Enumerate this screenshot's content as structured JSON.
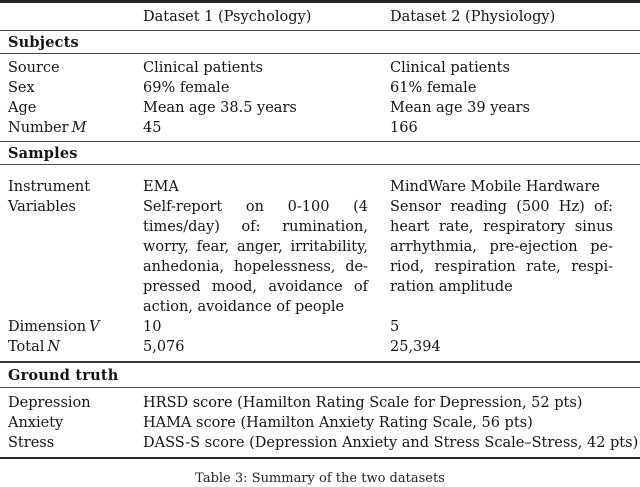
{
  "header": {
    "dataset1": "Dataset 1 (Psychology)",
    "dataset2": "Dataset 2 (Physiology)"
  },
  "subjects": {
    "title": "Subjects",
    "rows": [
      {
        "label": "Source",
        "c1": "Clinical patients",
        "c2": "Clinical patients"
      },
      {
        "label": "Sex",
        "c1": "69% female",
        "c2": "61% female"
      },
      {
        "label": "Age",
        "c1": "Mean age 38.5 years",
        "c2": "Mean age 39 years"
      },
      {
        "label": "Number",
        "math": "M",
        "c1": "45",
        "c2": "166"
      }
    ]
  },
  "samples": {
    "title": "Samples",
    "instrument": {
      "label": "Instrument",
      "c1": "EMA",
      "c2": "MindWare Mobile Hardware"
    },
    "variables": {
      "label": "Variables",
      "c1_lines": [
        "Self-report on 0-100 (4",
        "times/day) of: rumination,",
        "worry, fear, anger, irritability,",
        "anhedonia, hopelessness, de-",
        "pressed mood, avoidance of",
        "action, avoidance of people"
      ],
      "c2_lines": [
        "Sensor reading (500 Hz) of:",
        "heart rate, respiratory sinus",
        "arrhythmia, pre-ejection pe-",
        "riod, respiration rate, respi-",
        "ration amplitude"
      ]
    },
    "dimension": {
      "label": "Dimension",
      "math": "V",
      "c1": "10",
      "c2": "5"
    },
    "total": {
      "label": "Total",
      "math": "N",
      "c1": "5,076",
      "c2": "25,394"
    }
  },
  "ground_truth": {
    "title": "Ground truth",
    "rows": [
      {
        "label": "Depression",
        "value": "HRSD score (Hamilton Rating Scale for Depression, 52 pts)"
      },
      {
        "label": "Anxiety",
        "value": "HAMA score (Hamilton Anxiety Rating Scale, 56 pts)"
      },
      {
        "label": "Stress",
        "value": "DASS-S score (Depression Anxiety and Stress Scale–Stress, 42 pts)"
      }
    ]
  },
  "caption": "Table 3: Summary of the two datasets"
}
